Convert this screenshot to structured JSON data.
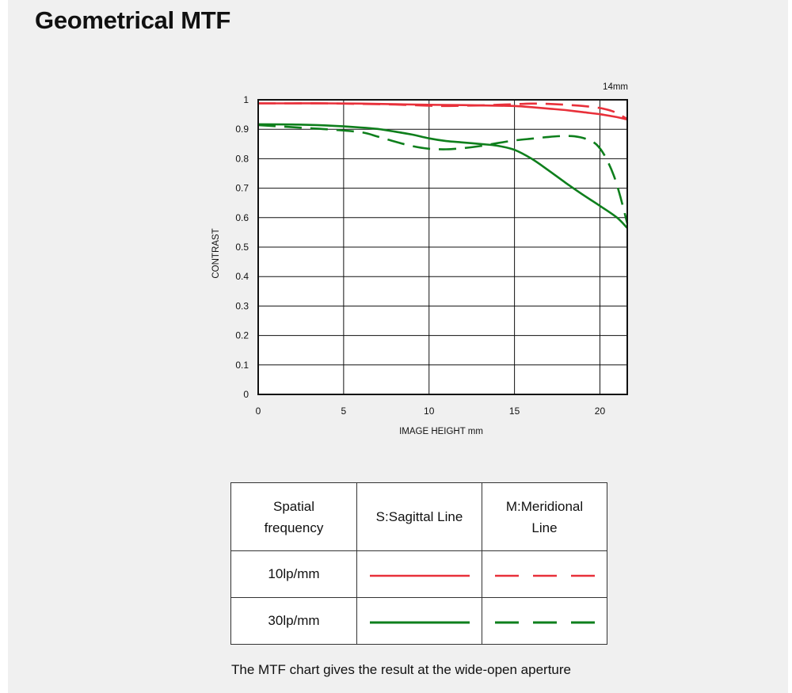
{
  "page": {
    "title": "Geometrical MTF"
  },
  "chart_data": {
    "type": "line",
    "focal_label": "14mm",
    "xlabel": "IMAGE HEIGHT mm",
    "ylabel": "CONTRAST",
    "xlim": [
      0,
      21.6
    ],
    "ylim": [
      0,
      1
    ],
    "x_ticks": [
      0,
      5,
      10,
      15,
      20
    ],
    "y_ticks": [
      0,
      0.1,
      0.2,
      0.3,
      0.4,
      0.5,
      0.6,
      0.7,
      0.8,
      0.9,
      1
    ],
    "grid": true,
    "series": [
      {
        "color": "#e8303a",
        "dash": "solid",
        "points": [
          [
            0,
            0.988
          ],
          [
            2,
            0.988
          ],
          [
            4,
            0.988
          ],
          [
            6,
            0.987
          ],
          [
            8,
            0.985
          ],
          [
            10,
            0.983
          ],
          [
            12,
            0.982
          ],
          [
            14,
            0.98
          ],
          [
            15,
            0.979
          ],
          [
            16,
            0.975
          ],
          [
            17,
            0.97
          ],
          [
            18,
            0.965
          ],
          [
            19,
            0.958
          ],
          [
            20,
            0.951
          ],
          [
            21,
            0.941
          ],
          [
            21.6,
            0.933
          ]
        ]
      },
      {
        "color": "#e8303a",
        "dash": "dashed",
        "points": [
          [
            0,
            0.988
          ],
          [
            2,
            0.988
          ],
          [
            4,
            0.988
          ],
          [
            6,
            0.986
          ],
          [
            8,
            0.984
          ],
          [
            10,
            0.98
          ],
          [
            11,
            0.979
          ],
          [
            12,
            0.98
          ],
          [
            13,
            0.981
          ],
          [
            14,
            0.983
          ],
          [
            15,
            0.985
          ],
          [
            16,
            0.987
          ],
          [
            17,
            0.986
          ],
          [
            18,
            0.983
          ],
          [
            19,
            0.979
          ],
          [
            20,
            0.972
          ],
          [
            20.8,
            0.96
          ],
          [
            21.6,
            0.935
          ]
        ]
      },
      {
        "color": "#0e7f1c",
        "dash": "solid",
        "points": [
          [
            0,
            0.917
          ],
          [
            2,
            0.916
          ],
          [
            4,
            0.913
          ],
          [
            6,
            0.906
          ],
          [
            7,
            0.901
          ],
          [
            8,
            0.892
          ],
          [
            9,
            0.882
          ],
          [
            10,
            0.869
          ],
          [
            11,
            0.86
          ],
          [
            12,
            0.855
          ],
          [
            13,
            0.85
          ],
          [
            14,
            0.844
          ],
          [
            15,
            0.83
          ],
          [
            16,
            0.8
          ],
          [
            17,
            0.76
          ],
          [
            18,
            0.718
          ],
          [
            19,
            0.678
          ],
          [
            20,
            0.64
          ],
          [
            21,
            0.6
          ],
          [
            21.6,
            0.565
          ]
        ]
      },
      {
        "color": "#0e7f1c",
        "dash": "dashed",
        "points": [
          [
            0,
            0.914
          ],
          [
            2,
            0.907
          ],
          [
            4,
            0.9
          ],
          [
            6,
            0.89
          ],
          [
            7,
            0.875
          ],
          [
            8,
            0.858
          ],
          [
            9,
            0.843
          ],
          [
            10,
            0.834
          ],
          [
            11,
            0.832
          ],
          [
            12,
            0.836
          ],
          [
            13,
            0.843
          ],
          [
            14,
            0.853
          ],
          [
            15,
            0.862
          ],
          [
            16,
            0.868
          ],
          [
            17,
            0.874
          ],
          [
            17.8,
            0.877
          ],
          [
            18.5,
            0.876
          ],
          [
            19.2,
            0.867
          ],
          [
            19.8,
            0.848
          ],
          [
            20.3,
            0.808
          ],
          [
            20.8,
            0.745
          ],
          [
            21.2,
            0.67
          ],
          [
            21.6,
            0.58
          ]
        ]
      }
    ]
  },
  "legend": {
    "header": {
      "frequency": "Spatial frequency",
      "sagittal": "S:Sagittal Line",
      "meridional": "M:Meridional Line"
    },
    "rows": [
      {
        "label": "10lp/mm",
        "color": "#e8303a"
      },
      {
        "label": "30lp/mm",
        "color": "#0e7f1c"
      }
    ]
  },
  "caption": "The MTF chart gives the result at the wide-open aperture"
}
